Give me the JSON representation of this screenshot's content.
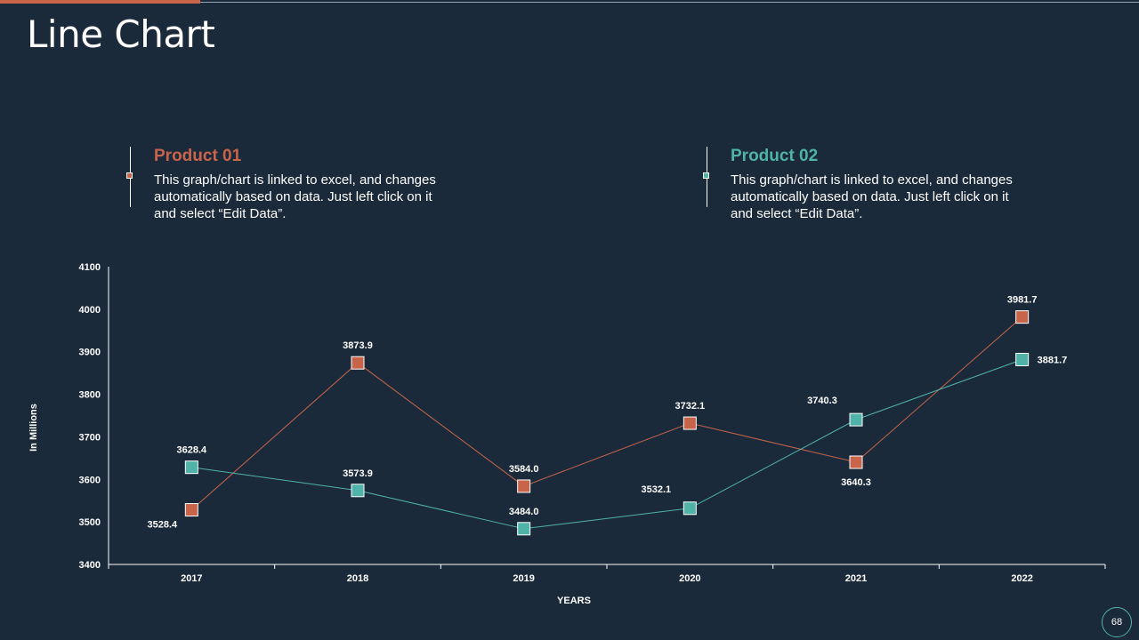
{
  "page": {
    "title": "Line Chart",
    "page_number": "68"
  },
  "legend": [
    {
      "name": "Product 01",
      "color": "#c8644a",
      "description": "This graph/chart is linked to excel, and changes automatically based on data. Just left click on it and select “Edit Data”."
    },
    {
      "name": "Product 02",
      "color": "#4fb3aa",
      "description": "This graph/chart is linked to excel, and changes automatically based on data. Just left click on it and select “Edit Data”."
    }
  ],
  "chart_data": {
    "type": "line",
    "categories": [
      "2017",
      "2018",
      "2019",
      "2020",
      "2021",
      "2022"
    ],
    "series": [
      {
        "name": "Product 01",
        "color": "#c8644a",
        "values": [
          3528.4,
          3873.9,
          3584.0,
          3732.1,
          3640.3,
          3981.7
        ]
      },
      {
        "name": "Product 02",
        "color": "#4fb3aa",
        "values": [
          3628.4,
          3573.9,
          3484.0,
          3532.1,
          3740.3,
          3881.7
        ]
      }
    ],
    "xlabel": "YEARS",
    "ylabel": "In Millions",
    "ylim": [
      3400,
      4100
    ],
    "yticks": [
      3400,
      3500,
      3600,
      3700,
      3800,
      3900,
      4000,
      4100
    ],
    "grid": false,
    "legend_placement": "top"
  }
}
